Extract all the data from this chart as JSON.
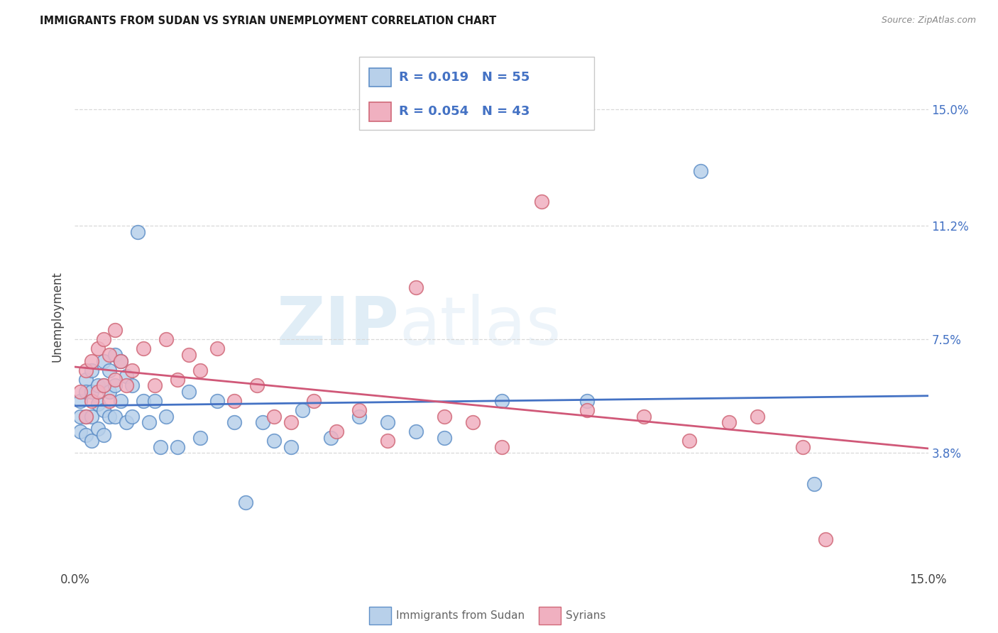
{
  "title": "IMMIGRANTS FROM SUDAN VS SYRIAN UNEMPLOYMENT CORRELATION CHART",
  "source": "Source: ZipAtlas.com",
  "ylabel": "Unemployment",
  "ytick_vals": [
    0.0,
    0.038,
    0.075,
    0.112,
    0.15
  ],
  "ytick_labels": [
    "",
    "3.8%",
    "7.5%",
    "11.2%",
    "15.0%"
  ],
  "xlim": [
    0.0,
    0.15
  ],
  "ylim": [
    0.0,
    0.165
  ],
  "xticklabel_left": "0.0%",
  "xticklabel_right": "15.0%",
  "legend_label1": "Immigrants from Sudan",
  "legend_label2": "Syrians",
  "R1": "0.019",
  "N1": "55",
  "R2": "0.054",
  "N2": "43",
  "watermark_zip": "ZIP",
  "watermark_atlas": "atlas",
  "color_blue_fill": "#b8d0ea",
  "color_blue_edge": "#6090c8",
  "color_pink_fill": "#f0b0c0",
  "color_pink_edge": "#d06878",
  "color_blue_line": "#4472c4",
  "color_pink_line": "#d05878",
  "grid_color": "#d8d8d8",
  "sudan_x": [
    0.001,
    0.001,
    0.001,
    0.002,
    0.002,
    0.002,
    0.002,
    0.003,
    0.003,
    0.003,
    0.003,
    0.004,
    0.004,
    0.004,
    0.005,
    0.005,
    0.005,
    0.005,
    0.006,
    0.006,
    0.006,
    0.007,
    0.007,
    0.007,
    0.008,
    0.008,
    0.009,
    0.009,
    0.01,
    0.01,
    0.011,
    0.012,
    0.013,
    0.014,
    0.015,
    0.016,
    0.018,
    0.02,
    0.022,
    0.025,
    0.028,
    0.03,
    0.033,
    0.035,
    0.038,
    0.04,
    0.045,
    0.05,
    0.055,
    0.06,
    0.065,
    0.075,
    0.09,
    0.11,
    0.13
  ],
  "sudan_y": [
    0.055,
    0.05,
    0.045,
    0.062,
    0.058,
    0.05,
    0.044,
    0.065,
    0.058,
    0.05,
    0.042,
    0.06,
    0.054,
    0.046,
    0.068,
    0.06,
    0.052,
    0.044,
    0.065,
    0.058,
    0.05,
    0.07,
    0.06,
    0.05,
    0.068,
    0.055,
    0.063,
    0.048,
    0.06,
    0.05,
    0.11,
    0.055,
    0.048,
    0.055,
    0.04,
    0.05,
    0.04,
    0.058,
    0.043,
    0.055,
    0.048,
    0.022,
    0.048,
    0.042,
    0.04,
    0.052,
    0.043,
    0.05,
    0.048,
    0.045,
    0.043,
    0.055,
    0.055,
    0.13,
    0.028
  ],
  "syrian_x": [
    0.001,
    0.002,
    0.002,
    0.003,
    0.003,
    0.004,
    0.004,
    0.005,
    0.005,
    0.006,
    0.006,
    0.007,
    0.007,
    0.008,
    0.009,
    0.01,
    0.012,
    0.014,
    0.016,
    0.018,
    0.02,
    0.022,
    0.025,
    0.028,
    0.032,
    0.035,
    0.038,
    0.042,
    0.046,
    0.05,
    0.055,
    0.06,
    0.065,
    0.07,
    0.075,
    0.082,
    0.09,
    0.1,
    0.108,
    0.115,
    0.12,
    0.128,
    0.132
  ],
  "syrian_y": [
    0.058,
    0.065,
    0.05,
    0.068,
    0.055,
    0.072,
    0.058,
    0.075,
    0.06,
    0.07,
    0.055,
    0.078,
    0.062,
    0.068,
    0.06,
    0.065,
    0.072,
    0.06,
    0.075,
    0.062,
    0.07,
    0.065,
    0.072,
    0.055,
    0.06,
    0.05,
    0.048,
    0.055,
    0.045,
    0.052,
    0.042,
    0.092,
    0.05,
    0.048,
    0.04,
    0.12,
    0.052,
    0.05,
    0.042,
    0.048,
    0.05,
    0.04,
    0.01
  ]
}
